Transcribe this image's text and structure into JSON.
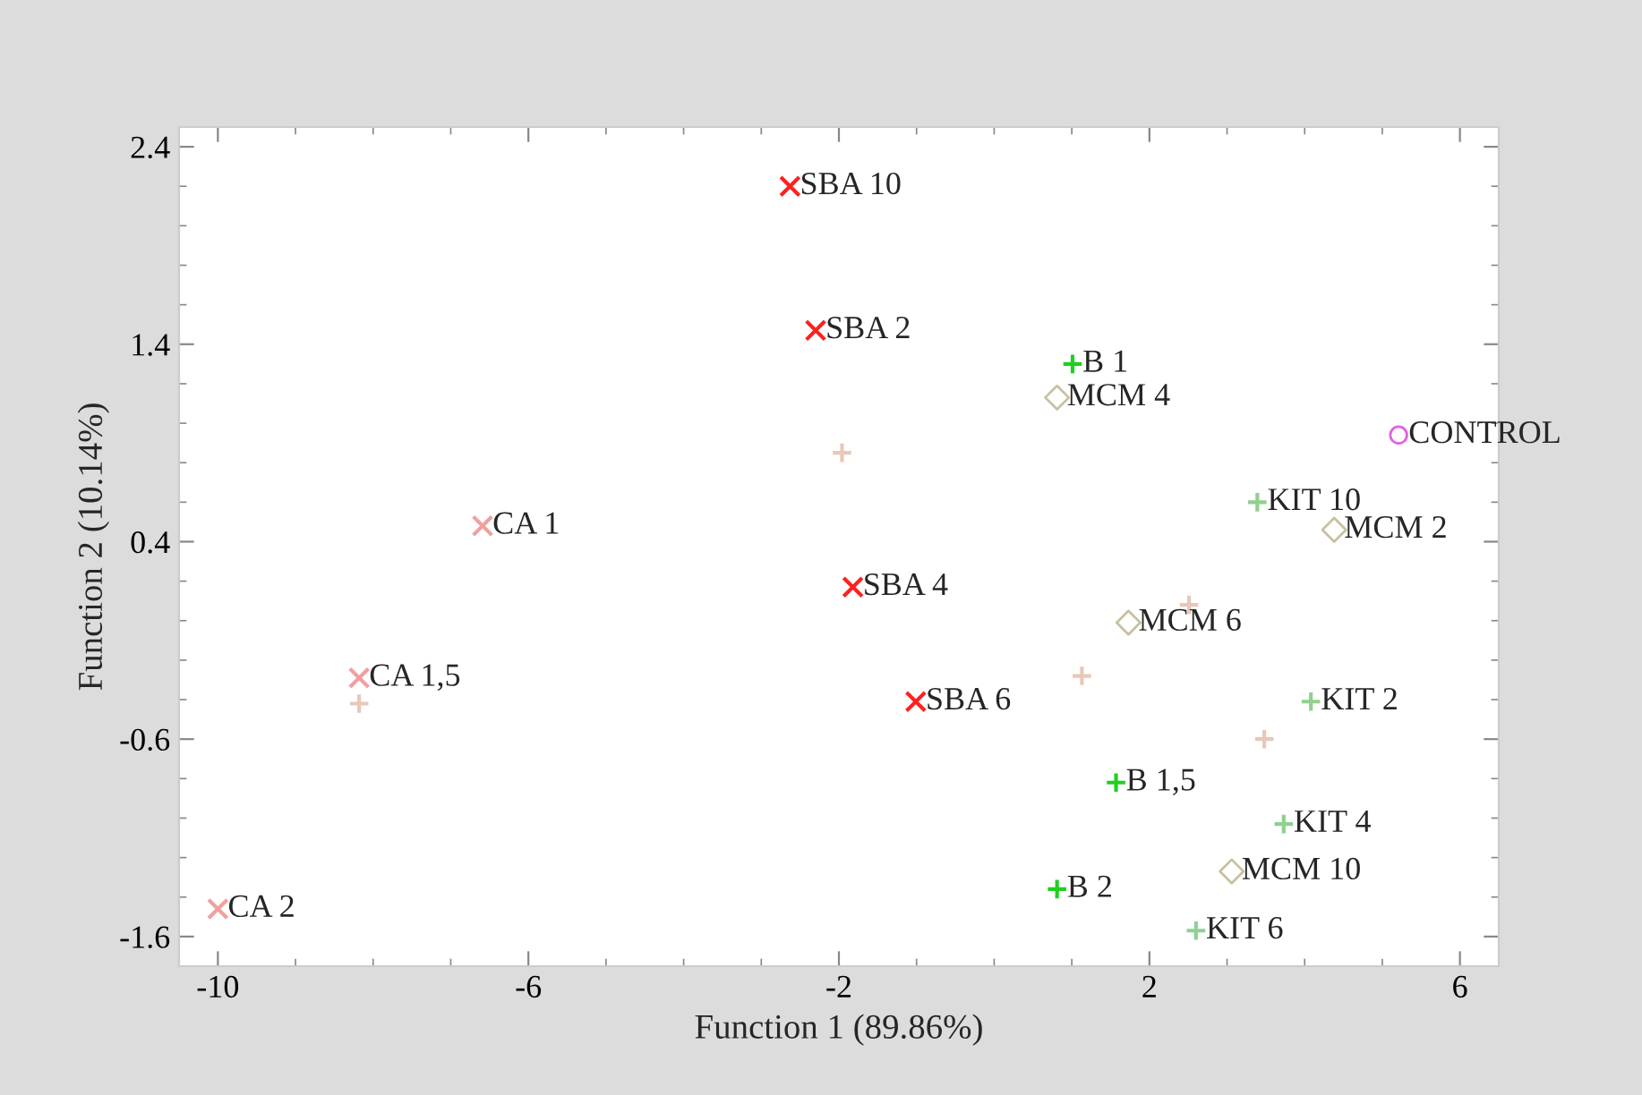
{
  "chart_data": {
    "type": "scatter",
    "xlabel": "Function 1 (89.86%)",
    "ylabel": "Function 2 (10.14%)",
    "xlim": [
      -10.5,
      6.5
    ],
    "xticks": [
      -10,
      -6,
      -2,
      2,
      6
    ],
    "ylim": [
      -1.75,
      2.5
    ],
    "yticks": [
      -1.6,
      -0.6,
      0.4,
      1.4,
      2.4
    ],
    "grid": false,
    "series": [
      {
        "color": "#ff2020",
        "marker": "cross",
        "x": [
          -2.63,
          -2.3,
          -1.82,
          -1.01
        ],
        "values": [
          2.2,
          1.47,
          0.17,
          -0.41
        ]
      },
      {
        "color": "#f0a0a0",
        "marker": "cross",
        "x": [
          -6.59,
          -8.18,
          -10.0
        ],
        "values": [
          0.48,
          -0.29,
          -1.46
        ]
      },
      {
        "color": "#20d020",
        "marker": "plus",
        "x": [
          1.01,
          1.57,
          0.81
        ],
        "values": [
          1.3,
          -0.82,
          -1.36
        ]
      },
      {
        "color": "#c8c0a0",
        "marker": "diamond",
        "x": [
          0.81,
          4.38,
          1.73,
          3.06
        ],
        "values": [
          1.13,
          0.46,
          -0.01,
          -1.27
        ]
      },
      {
        "color": "#90d090",
        "marker": "plus",
        "x": [
          3.39,
          4.08,
          3.73,
          2.6
        ],
        "values": [
          0.6,
          -0.41,
          -1.03,
          -1.57
        ]
      },
      {
        "color": "#e060e0",
        "marker": "circle",
        "x": [
          5.21
        ],
        "values": [
          0.94
        ]
      },
      {
        "color": "#e8c8b8",
        "marker": "plus",
        "x": [
          -1.96,
          -8.18,
          1.13,
          3.48,
          2.51
        ],
        "values": [
          0.85,
          -0.42,
          -0.28,
          -0.6,
          0.08
        ]
      }
    ],
    "annotations": [
      {
        "text": "SBA 10",
        "x": -2.63,
        "y": 2.2
      },
      {
        "text": "SBA 2",
        "x": -2.3,
        "y": 1.47
      },
      {
        "text": "SBA 4",
        "x": -1.82,
        "y": 0.17
      },
      {
        "text": "SBA 6",
        "x": -1.01,
        "y": -0.41
      },
      {
        "text": "CA 1",
        "x": -6.59,
        "y": 0.48
      },
      {
        "text": "CA 1,5",
        "x": -8.18,
        "y": -0.29
      },
      {
        "text": "CA 2",
        "x": -10.0,
        "y": -1.46
      },
      {
        "text": "B 1",
        "x": 1.01,
        "y": 1.3
      },
      {
        "text": "B 1,5",
        "x": 1.57,
        "y": -0.82
      },
      {
        "text": "B 2",
        "x": 0.81,
        "y": -1.36
      },
      {
        "text": "MCM 4",
        "x": 0.81,
        "y": 1.13
      },
      {
        "text": "MCM 2",
        "x": 4.38,
        "y": 0.46
      },
      {
        "text": "MCM 6",
        "x": 1.73,
        "y": -0.01
      },
      {
        "text": "MCM 10",
        "x": 3.06,
        "y": -1.27
      },
      {
        "text": "KIT 10",
        "x": 3.39,
        "y": 0.6
      },
      {
        "text": "KIT 2",
        "x": 4.08,
        "y": -0.41
      },
      {
        "text": "KIT 4",
        "x": 3.73,
        "y": -1.03
      },
      {
        "text": "KIT 6",
        "x": 2.6,
        "y": -1.57
      },
      {
        "text": "CONTROL",
        "x": 5.21,
        "y": 0.94
      }
    ]
  }
}
